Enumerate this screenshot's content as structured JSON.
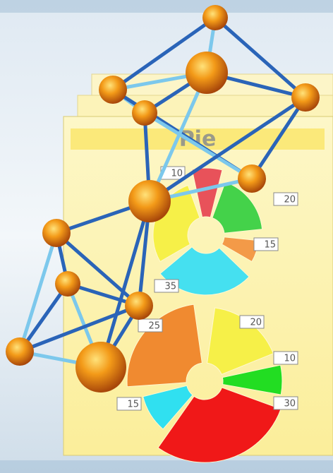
{
  "title": "Pie",
  "pies": [
    {
      "labels": [
        "10",
        "20",
        "15",
        "35"
      ]
    },
    {
      "labels": [
        "25",
        "20",
        "10",
        "30",
        "15"
      ]
    }
  ]
}
